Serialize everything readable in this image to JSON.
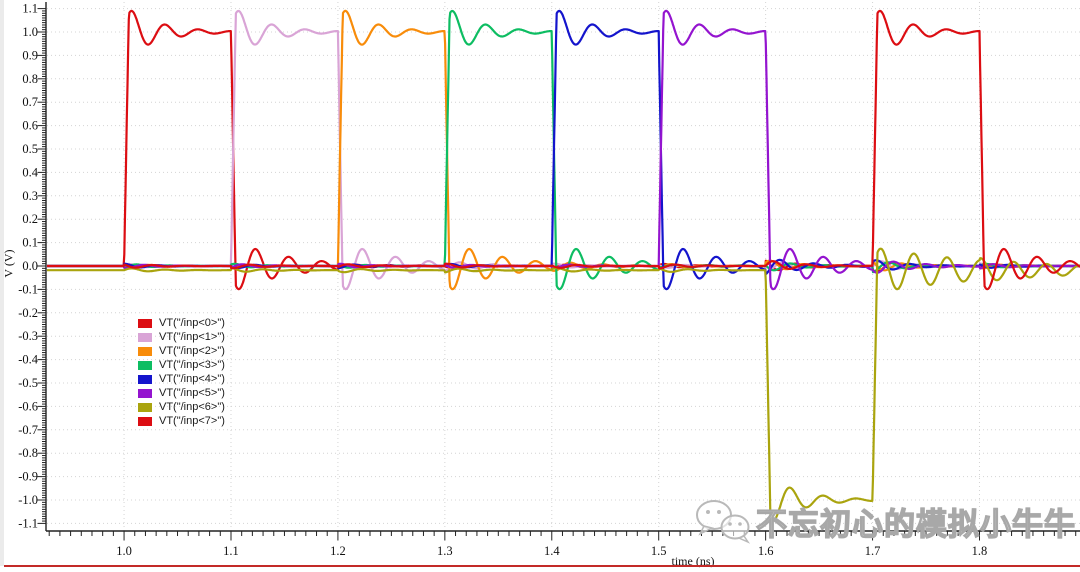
{
  "window": {
    "bottom_border_color": "#c32a28",
    "left_margin_color": "#ebebeb"
  },
  "watermark": {
    "text": "不忘初心的模拟小牛牛",
    "icon": "wechat-icon"
  },
  "chart_data": {
    "type": "line",
    "title": "",
    "xlabel": "time (ns)",
    "ylabel": "V (V)",
    "xlim": [
      0.927,
      1.894
    ],
    "ylim": [
      -1.1,
      1.1
    ],
    "x_major_ticks": [
      1.0,
      1.1,
      1.2,
      1.3,
      1.4,
      1.5,
      1.6,
      1.7,
      1.8
    ],
    "x_tick_labels": [
      "1.0",
      "1.1",
      "1.2",
      "1.3",
      "1.4",
      "1.5",
      "1.6",
      "1.7",
      "1.8"
    ],
    "y_major_step": 0.1,
    "x_minor_step": 0.01,
    "y_minor_step": 0.01,
    "y_tick_labels": [
      "1.1",
      "1.0",
      "0.9",
      "0.8",
      "0.7",
      "0.6",
      "0.5",
      "0.4",
      "0.3",
      "0.2",
      "0.1",
      "0.0",
      "-0.1",
      "-0.2",
      "-0.3",
      "-0.4",
      "-0.5",
      "-0.6",
      "-0.7",
      "-0.8",
      "-0.9",
      "-1.0",
      "-1.1"
    ],
    "grid": "dotted",
    "grid_color": "#d4d4d4",
    "axis_color": "#222222",
    "legend_position": "middle-left",
    "series": [
      {
        "name": "VT(\"/inp<0>\")",
        "color": "#dc0d12",
        "base": 0.0,
        "level": 1.0,
        "pulse_start": 1.0,
        "pulse_end": 1.1
      },
      {
        "name": "VT(\"/inp<1>\")",
        "color": "#d9a4d6",
        "base": 0.0,
        "level": 1.0,
        "pulse_start": 1.1,
        "pulse_end": 1.2
      },
      {
        "name": "VT(\"/inp<2>\")",
        "color": "#f88c0a",
        "base": 0.0,
        "level": 1.0,
        "pulse_start": 1.2,
        "pulse_end": 1.3
      },
      {
        "name": "VT(\"/inp<3>\")",
        "color": "#0dbd62",
        "base": 0.0,
        "level": 1.0,
        "pulse_start": 1.3,
        "pulse_end": 1.4
      },
      {
        "name": "VT(\"/inp<4>\")",
        "color": "#1414cc",
        "base": 0.0,
        "level": 1.0,
        "pulse_start": 1.4,
        "pulse_end": 1.5
      },
      {
        "name": "VT(\"/inp<5>\")",
        "color": "#9414cf",
        "base": 0.0,
        "level": 1.0,
        "pulse_start": 1.5,
        "pulse_end": 1.6
      },
      {
        "name": "VT(\"/inp<6>\")",
        "color": "#aaa40e",
        "base": -0.018,
        "level": -1.0,
        "pulse_start": 1.6,
        "pulse_end": 1.7,
        "recovery_decay": 0.12,
        "recovery_amp": 0.1
      },
      {
        "name": "VT(\"/inp<7>\")",
        "color": "#dc0d12",
        "base": 0.0,
        "level": 1.0,
        "pulse_start": 1.7,
        "pulse_end": 1.8
      }
    ],
    "ringing": {
      "overshoot": 0.115,
      "undershoot": 0.115,
      "ring_period_ns": 0.031,
      "ring_decay_ns": 0.03,
      "fall_decay_ns": 0.05,
      "rise_time_ns": 0.0045,
      "coupling_amp": 0.01,
      "coupling_amp_strong": 0.026,
      "strong_boundaries": [
        1.6,
        1.7
      ]
    }
  }
}
